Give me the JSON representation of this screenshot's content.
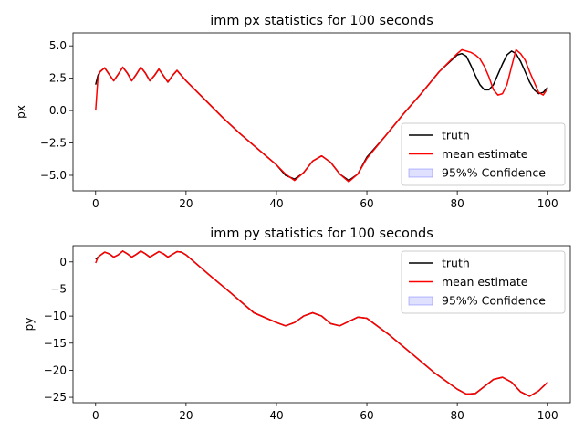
{
  "chart_data": [
    {
      "type": "line",
      "title": "imm px statistics for 100 seconds",
      "xlabel": "",
      "ylabel": "px",
      "xlim": [
        -5,
        105
      ],
      "ylim": [
        -6.2,
        6.0
      ],
      "xticks": [
        0,
        20,
        40,
        60,
        80,
        100
      ],
      "xtick_labels": [
        "0",
        "20",
        "40",
        "60",
        "80",
        "100"
      ],
      "yticks": [
        5.0,
        2.5,
        0.0,
        -2.5,
        -5.0
      ],
      "ytick_labels": [
        "5.0",
        "2.5",
        "0.0",
        "−2.5",
        "−5.0"
      ],
      "legend_position": "lower-right",
      "series": [
        {
          "name": "truth",
          "color": "#000000",
          "style": "line",
          "x": [
            0,
            0.5,
            1,
            2,
            3,
            4,
            5,
            6,
            7,
            8,
            9,
            10,
            11,
            12,
            13,
            14,
            15,
            16,
            17,
            18,
            19,
            20,
            24,
            28,
            32,
            36,
            40,
            42,
            44,
            46,
            48,
            50,
            52,
            54,
            56,
            58,
            60,
            64,
            68,
            72,
            76,
            80,
            81,
            82,
            83,
            84,
            85,
            86,
            87,
            88,
            89,
            90,
            91,
            92,
            93,
            94,
            95,
            96,
            97,
            98,
            99,
            100
          ],
          "y": [
            2.0,
            2.7,
            3.0,
            3.3,
            2.8,
            2.3,
            2.8,
            3.35,
            2.9,
            2.3,
            2.8,
            3.35,
            2.9,
            2.3,
            2.7,
            3.2,
            2.7,
            2.2,
            2.7,
            3.1,
            2.7,
            2.3,
            0.9,
            -0.5,
            -1.8,
            -3.0,
            -4.2,
            -5.0,
            -5.3,
            -4.8,
            -3.9,
            -3.5,
            -4.0,
            -4.9,
            -5.4,
            -4.9,
            -3.6,
            -2.0,
            -0.3,
            1.3,
            3.0,
            4.3,
            4.4,
            4.2,
            3.5,
            2.7,
            2.0,
            1.6,
            1.6,
            2.0,
            2.8,
            3.6,
            4.3,
            4.6,
            4.4,
            3.8,
            3.0,
            2.2,
            1.6,
            1.3,
            1.4,
            1.8
          ]
        },
        {
          "name": "mean estimate",
          "color": "#ff0000",
          "style": "line",
          "x": [
            0,
            0.5,
            1,
            2,
            3,
            4,
            5,
            6,
            7,
            8,
            9,
            10,
            11,
            12,
            13,
            14,
            15,
            16,
            17,
            18,
            19,
            20,
            24,
            28,
            32,
            36,
            40,
            42,
            44,
            46,
            48,
            50,
            52,
            54,
            56,
            58,
            60,
            64,
            68,
            72,
            76,
            80,
            81,
            82,
            83,
            84,
            85,
            86,
            87,
            88,
            89,
            90,
            91,
            92,
            93,
            94,
            95,
            96,
            97,
            98,
            99,
            100
          ],
          "y": [
            0.0,
            2.5,
            3.0,
            3.3,
            2.8,
            2.3,
            2.8,
            3.35,
            2.9,
            2.3,
            2.8,
            3.35,
            2.9,
            2.3,
            2.7,
            3.2,
            2.7,
            2.2,
            2.7,
            3.1,
            2.7,
            2.3,
            0.9,
            -0.5,
            -1.8,
            -3.0,
            -4.2,
            -4.9,
            -5.4,
            -4.8,
            -3.9,
            -3.5,
            -4.0,
            -4.9,
            -5.5,
            -4.9,
            -3.7,
            -2.0,
            -0.3,
            1.3,
            3.0,
            4.4,
            4.7,
            4.6,
            4.5,
            4.3,
            4.0,
            3.4,
            2.6,
            1.6,
            1.2,
            1.3,
            2.0,
            3.4,
            4.7,
            4.4,
            3.9,
            3.0,
            2.2,
            1.4,
            1.2,
            1.7
          ]
        },
        {
          "name": "95%% Confidence",
          "color": "#0000ff",
          "style": "band"
        }
      ]
    },
    {
      "type": "line",
      "title": "imm py statistics for 100 seconds",
      "xlabel": "",
      "ylabel": "py",
      "xlim": [
        -5,
        105
      ],
      "ylim": [
        -26,
        3
      ],
      "xticks": [
        0,
        20,
        40,
        60,
        80,
        100
      ],
      "xtick_labels": [
        "0",
        "20",
        "40",
        "60",
        "80",
        "100"
      ],
      "yticks": [
        0,
        -5,
        -10,
        -15,
        -20,
        -25
      ],
      "ytick_labels": [
        "0",
        "−5",
        "−10",
        "−15",
        "−20",
        "−25"
      ],
      "legend_position": "upper-right",
      "series": [
        {
          "name": "truth",
          "color": "#000000",
          "style": "line",
          "x": [
            0,
            1,
            2,
            3,
            4,
            5,
            6,
            7,
            8,
            9,
            10,
            11,
            12,
            13,
            14,
            15,
            16,
            17,
            18,
            19,
            20,
            25,
            30,
            35,
            40,
            42,
            44,
            46,
            48,
            50,
            52,
            54,
            56,
            58,
            60,
            65,
            70,
            75,
            80,
            82,
            84,
            86,
            88,
            90,
            92,
            94,
            96,
            98,
            100
          ],
          "y": [
            0.5,
            1.2,
            1.8,
            1.5,
            0.9,
            1.3,
            2.0,
            1.5,
            0.9,
            1.4,
            2.0,
            1.5,
            0.9,
            1.4,
            1.9,
            1.5,
            0.9,
            1.4,
            1.9,
            1.8,
            1.3,
            -2.3,
            -5.8,
            -9.4,
            -11.2,
            -11.8,
            -11.2,
            -10.0,
            -9.4,
            -10.0,
            -11.4,
            -11.8,
            -11.0,
            -10.2,
            -10.4,
            -13.5,
            -17.0,
            -20.5,
            -23.5,
            -24.4,
            -24.3,
            -23.0,
            -21.7,
            -21.3,
            -22.2,
            -24.0,
            -24.8,
            -23.8,
            -22.2
          ]
        },
        {
          "name": "mean estimate",
          "color": "#ff0000",
          "style": "line",
          "x": [
            0,
            0.5,
            1,
            2,
            3,
            4,
            5,
            6,
            7,
            8,
            9,
            10,
            11,
            12,
            13,
            14,
            15,
            16,
            17,
            18,
            19,
            20,
            25,
            30,
            35,
            40,
            42,
            44,
            46,
            48,
            50,
            52,
            54,
            56,
            58,
            60,
            65,
            70,
            75,
            80,
            82,
            84,
            86,
            88,
            90,
            92,
            94,
            96,
            98,
            100
          ],
          "y": [
            -0.2,
            0.8,
            1.2,
            1.8,
            1.5,
            0.9,
            1.3,
            2.0,
            1.5,
            0.9,
            1.4,
            2.0,
            1.5,
            0.9,
            1.4,
            1.9,
            1.5,
            0.9,
            1.4,
            1.9,
            1.8,
            1.3,
            -2.3,
            -5.8,
            -9.4,
            -11.2,
            -11.8,
            -11.2,
            -10.0,
            -9.4,
            -10.0,
            -11.4,
            -11.8,
            -11.0,
            -10.2,
            -10.4,
            -13.5,
            -17.0,
            -20.5,
            -23.5,
            -24.4,
            -24.3,
            -23.0,
            -21.7,
            -21.3,
            -22.2,
            -24.0,
            -24.8,
            -23.8,
            -22.2
          ]
        },
        {
          "name": "95%% Confidence",
          "color": "#0000ff",
          "style": "band"
        }
      ]
    }
  ]
}
